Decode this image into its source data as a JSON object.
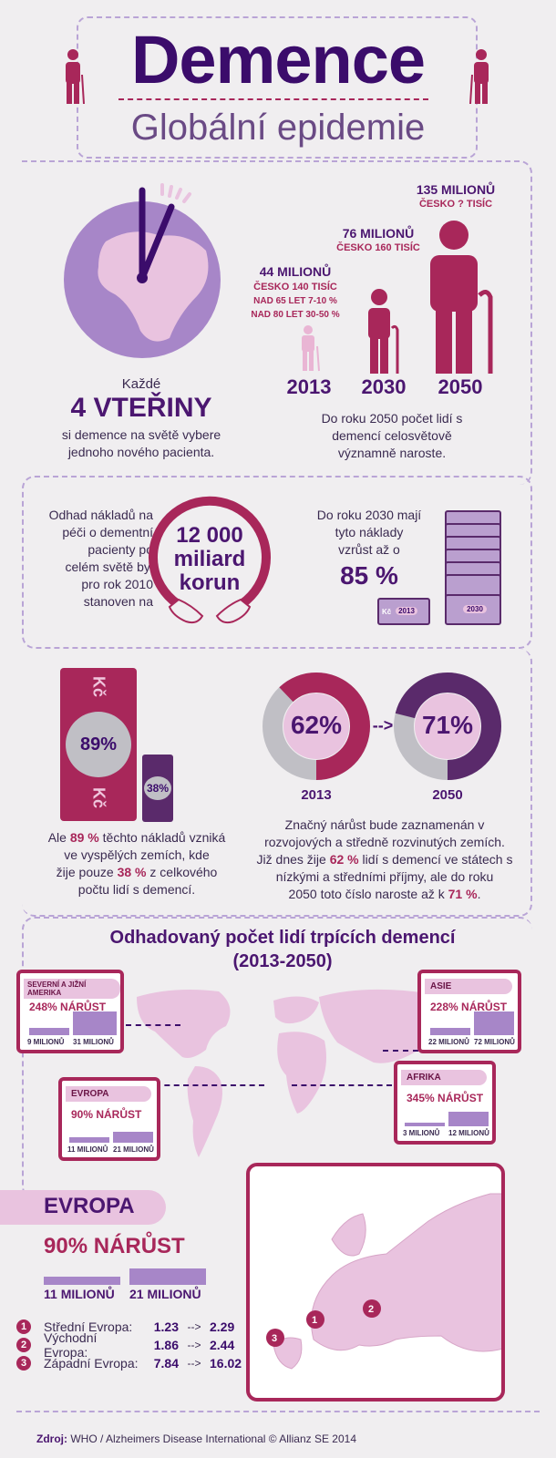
{
  "header": {
    "title": "Demence",
    "subtitle": "Globální epidemie"
  },
  "clock": {
    "prefix": "Každé",
    "big": "4 VTEŘINY",
    "line1": "si demence na světě vybere",
    "line2": "jednoho nového pacienta."
  },
  "projection": {
    "items": [
      {
        "year": "2013",
        "value": "44 MILIONŮ",
        "cz": "ČESKO 140 TISÍC",
        "extra1": "NAD 65 LET 7-10 %",
        "extra2": "NAD 80 LET 30-50 %"
      },
      {
        "year": "2030",
        "value": "76 MILIONŮ",
        "cz": "ČESKO 160 TISÍC"
      },
      {
        "year": "2050",
        "value": "135 MILIONŮ",
        "cz": "ČESKO  ? TISÍC"
      }
    ],
    "line1": "Do roku 2050 počet lidí s",
    "line2": "demencí celosvětově",
    "line3": "významně naroste."
  },
  "costs": {
    "left1": "Odhad nákladů na",
    "left2": "péči o dementní",
    "left3": "pacienty po",
    "left4": "celém světě byl",
    "left5": "pro rok 2010",
    "left6": "stanoven na",
    "circle1": "12 000",
    "circle2": "miliard",
    "circle3": "korun",
    "right1": "Do roku 2030 mají",
    "right2": "tyto náklady",
    "right3": "vzrůst až o",
    "right_pct": "85 %",
    "note_2013": "2013",
    "note_2030": "2030",
    "note_kc": "Kč"
  },
  "share": {
    "big_pct": "89%",
    "small_pct": "38%",
    "kc": "Kč",
    "line1_a": "Ale ",
    "line1_b": "89 %",
    "line1_c": " těchto nákladů vzniká",
    "line2": "ve vyspělých zemích, kde",
    "line3_a": "žije pouze ",
    "line3_b": "38 %",
    "line3_c": " z celkového",
    "line4": "počtu lidí s demencí.",
    "donut1": {
      "label": "62%",
      "year": "2013",
      "value": 62
    },
    "donut2": {
      "label": "71%",
      "year": "2050",
      "value": 71
    },
    "arrow": "-->",
    "r1": "Značný nárůst bude zaznamenán v",
    "r2": "rozvojových a středně rozvinutých zemích.",
    "r3_a": "Již dnes žije ",
    "r3_b": "62 %",
    "r3_c": " lidí s demencí ve státech s",
    "r4": "nízkými a středními příjmy, ale do roku",
    "r5_a": "2050 toto číslo naroste až k ",
    "r5_b": "71 %",
    "r5_c": "."
  },
  "map": {
    "title1": "Odhadovaný počet lidí trpících demencí",
    "title2": "(2013-2050)",
    "regions": [
      {
        "name": "SEVERNÍ A JIŽNÍ AMERIKA",
        "growth": "248% NÁRŮST",
        "from": "9 MILIONŮ",
        "to": "31 MILIONŮ",
        "from_v": 9,
        "to_v": 31
      },
      {
        "name": "ASIE",
        "growth": "228% NÁRŮST",
        "from": "22 MILIONŮ",
        "to": "72 MILIONŮ",
        "from_v": 22,
        "to_v": 72
      },
      {
        "name": "EVROPA",
        "growth": "90% NÁRŮST",
        "from": "11 MILIONŮ",
        "to": "21 MILIONŮ",
        "from_v": 11,
        "to_v": 21
      },
      {
        "name": "AFRIKA",
        "growth": "345% NÁRŮST",
        "from": "3 MILIONŮ",
        "to": "12 MILIONŮ",
        "from_v": 3,
        "to_v": 12
      }
    ]
  },
  "europe": {
    "name": "EVROPA",
    "growth": "90% NÁRŮST",
    "from": "11 MILIONŮ",
    "to": "21 MILIONŮ",
    "rows": [
      {
        "n": "1",
        "label": "Střední Evropa:",
        "a": "1.23",
        "arrow": "-->",
        "b": "2.29"
      },
      {
        "n": "2",
        "label": "Východní Evropa:",
        "a": "1.86",
        "arrow": "-->",
        "b": "2.44"
      },
      {
        "n": "3",
        "label": "Západní Evropa:",
        "a": "7.84",
        "arrow": "-->",
        "b": "16.02"
      }
    ]
  },
  "footer": {
    "label": "Zdroj:",
    "text": " WHO / Alzheimers Disease International © Allianz SE 2014"
  },
  "colors": {
    "magenta": "#a8275a",
    "purple": "#3b0c6b",
    "lilac": "#a786c8",
    "pink": "#e9c3df"
  }
}
